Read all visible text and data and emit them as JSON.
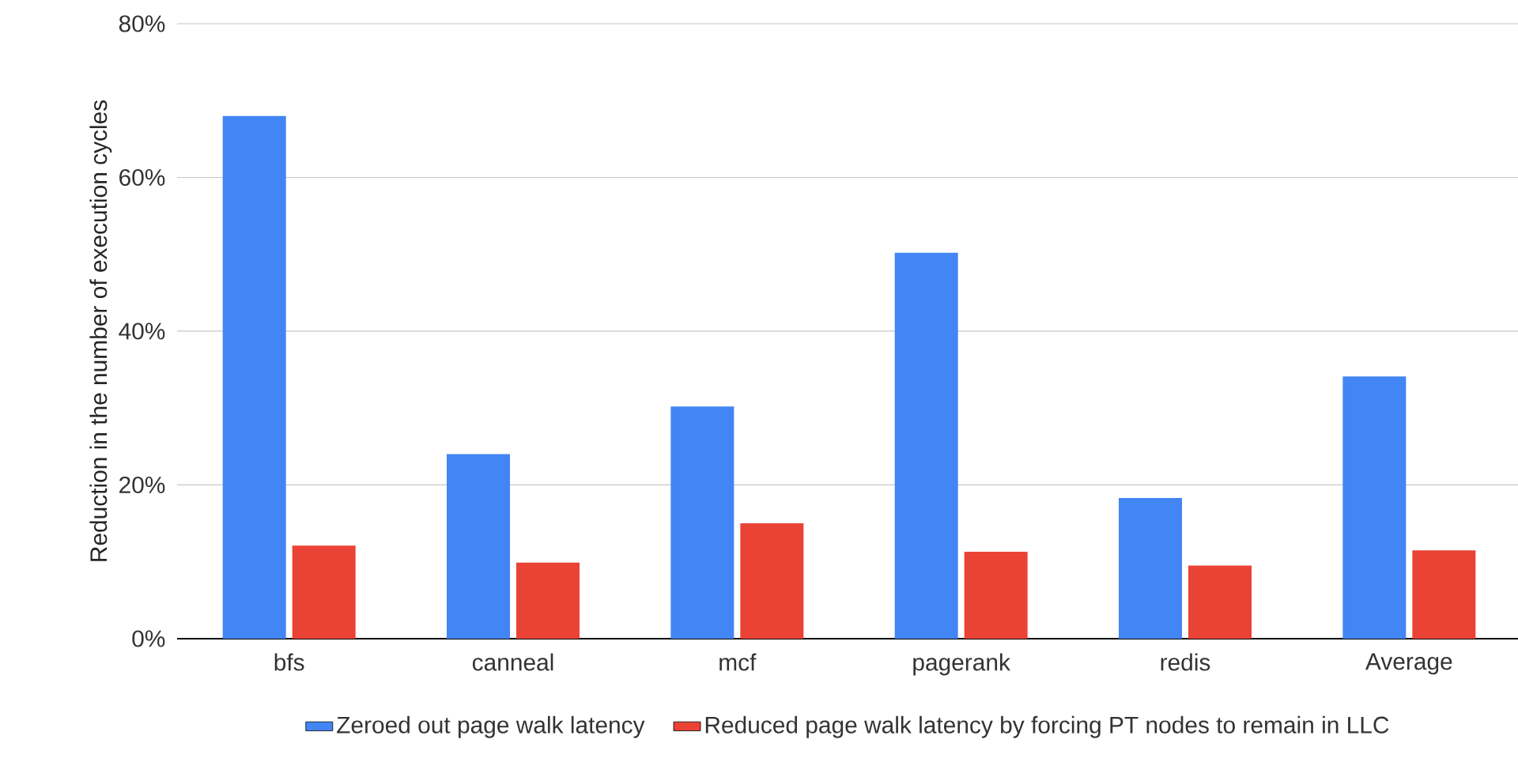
{
  "chart_data": {
    "type": "bar",
    "ylabel": "Reduction in the number of execution cycles",
    "categories": [
      "bfs",
      "canneal",
      "mcf",
      "pagerank",
      "redis",
      "Average"
    ],
    "series": [
      {
        "name": "Zeroed out page walk latency",
        "color": "#4285f4",
        "values": [
          68,
          24,
          30.2,
          50.2,
          18.3,
          34.1
        ]
      },
      {
        "name": "Reduced page walk latency by forcing PT nodes to remain in LLC",
        "color": "#ea4335",
        "values": [
          12.1,
          9.9,
          15,
          11.3,
          9.5,
          11.5
        ]
      }
    ],
    "ylim": [
      0,
      80
    ],
    "yticks": [
      {
        "value": 0,
        "label": "0%"
      },
      {
        "value": 20,
        "label": "20%"
      },
      {
        "value": 40,
        "label": "40%"
      },
      {
        "value": 60,
        "label": "60%"
      },
      {
        "value": 80,
        "label": "80%"
      }
    ],
    "grid": "y",
    "legend": "bottom"
  }
}
